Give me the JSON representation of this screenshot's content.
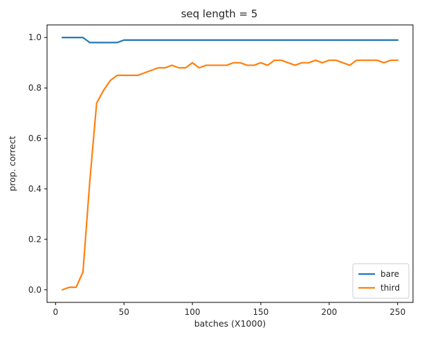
{
  "chart_data": {
    "type": "line",
    "title": "seq length = 5",
    "xlabel": "batches (X1000)",
    "ylabel": "prop. correct",
    "xlim": [
      -6.25,
      261.25
    ],
    "ylim": [
      -0.05,
      1.05
    ],
    "xticks": [
      0,
      50,
      100,
      150,
      200,
      250
    ],
    "yticks": [
      0.0,
      0.2,
      0.4,
      0.6,
      0.8,
      1.0
    ],
    "xtick_labels": [
      "0",
      "50",
      "100",
      "150",
      "200",
      "250"
    ],
    "ytick_labels": [
      "0.0",
      "0.2",
      "0.4",
      "0.6",
      "0.8",
      "1.0"
    ],
    "grid": false,
    "legend_position": "bottom-right",
    "x": [
      5,
      10,
      15,
      20,
      25,
      30,
      35,
      40,
      45,
      50,
      55,
      60,
      65,
      70,
      75,
      80,
      85,
      90,
      95,
      100,
      105,
      110,
      115,
      120,
      125,
      130,
      135,
      140,
      145,
      150,
      155,
      160,
      165,
      170,
      175,
      180,
      185,
      190,
      195,
      200,
      205,
      210,
      215,
      220,
      225,
      230,
      235,
      240,
      245,
      250
    ],
    "series": [
      {
        "name": "bare",
        "color": "#1f77b4",
        "values": [
          1.0,
          1.0,
          1.0,
          1.0,
          0.98,
          0.98,
          0.98,
          0.98,
          0.98,
          0.99,
          0.99,
          0.99,
          0.99,
          0.99,
          0.99,
          0.99,
          0.99,
          0.99,
          0.99,
          0.99,
          0.99,
          0.99,
          0.99,
          0.99,
          0.99,
          0.99,
          0.99,
          0.99,
          0.99,
          0.99,
          0.99,
          0.99,
          0.99,
          0.99,
          0.99,
          0.99,
          0.99,
          0.99,
          0.99,
          0.99,
          0.99,
          0.99,
          0.99,
          0.99,
          0.99,
          0.99,
          0.99,
          0.99,
          0.99,
          0.99
        ]
      },
      {
        "name": "third",
        "color": "#ff7f0e",
        "values": [
          0.0,
          0.01,
          0.01,
          0.07,
          0.43,
          0.74,
          0.79,
          0.83,
          0.85,
          0.85,
          0.85,
          0.85,
          0.86,
          0.87,
          0.88,
          0.88,
          0.89,
          0.88,
          0.88,
          0.9,
          0.88,
          0.89,
          0.89,
          0.89,
          0.89,
          0.9,
          0.9,
          0.89,
          0.89,
          0.9,
          0.89,
          0.91,
          0.91,
          0.9,
          0.89,
          0.9,
          0.9,
          0.91,
          0.9,
          0.91,
          0.91,
          0.9,
          0.89,
          0.91,
          0.91,
          0.91,
          0.91,
          0.9,
          0.91,
          0.91
        ]
      }
    ]
  }
}
